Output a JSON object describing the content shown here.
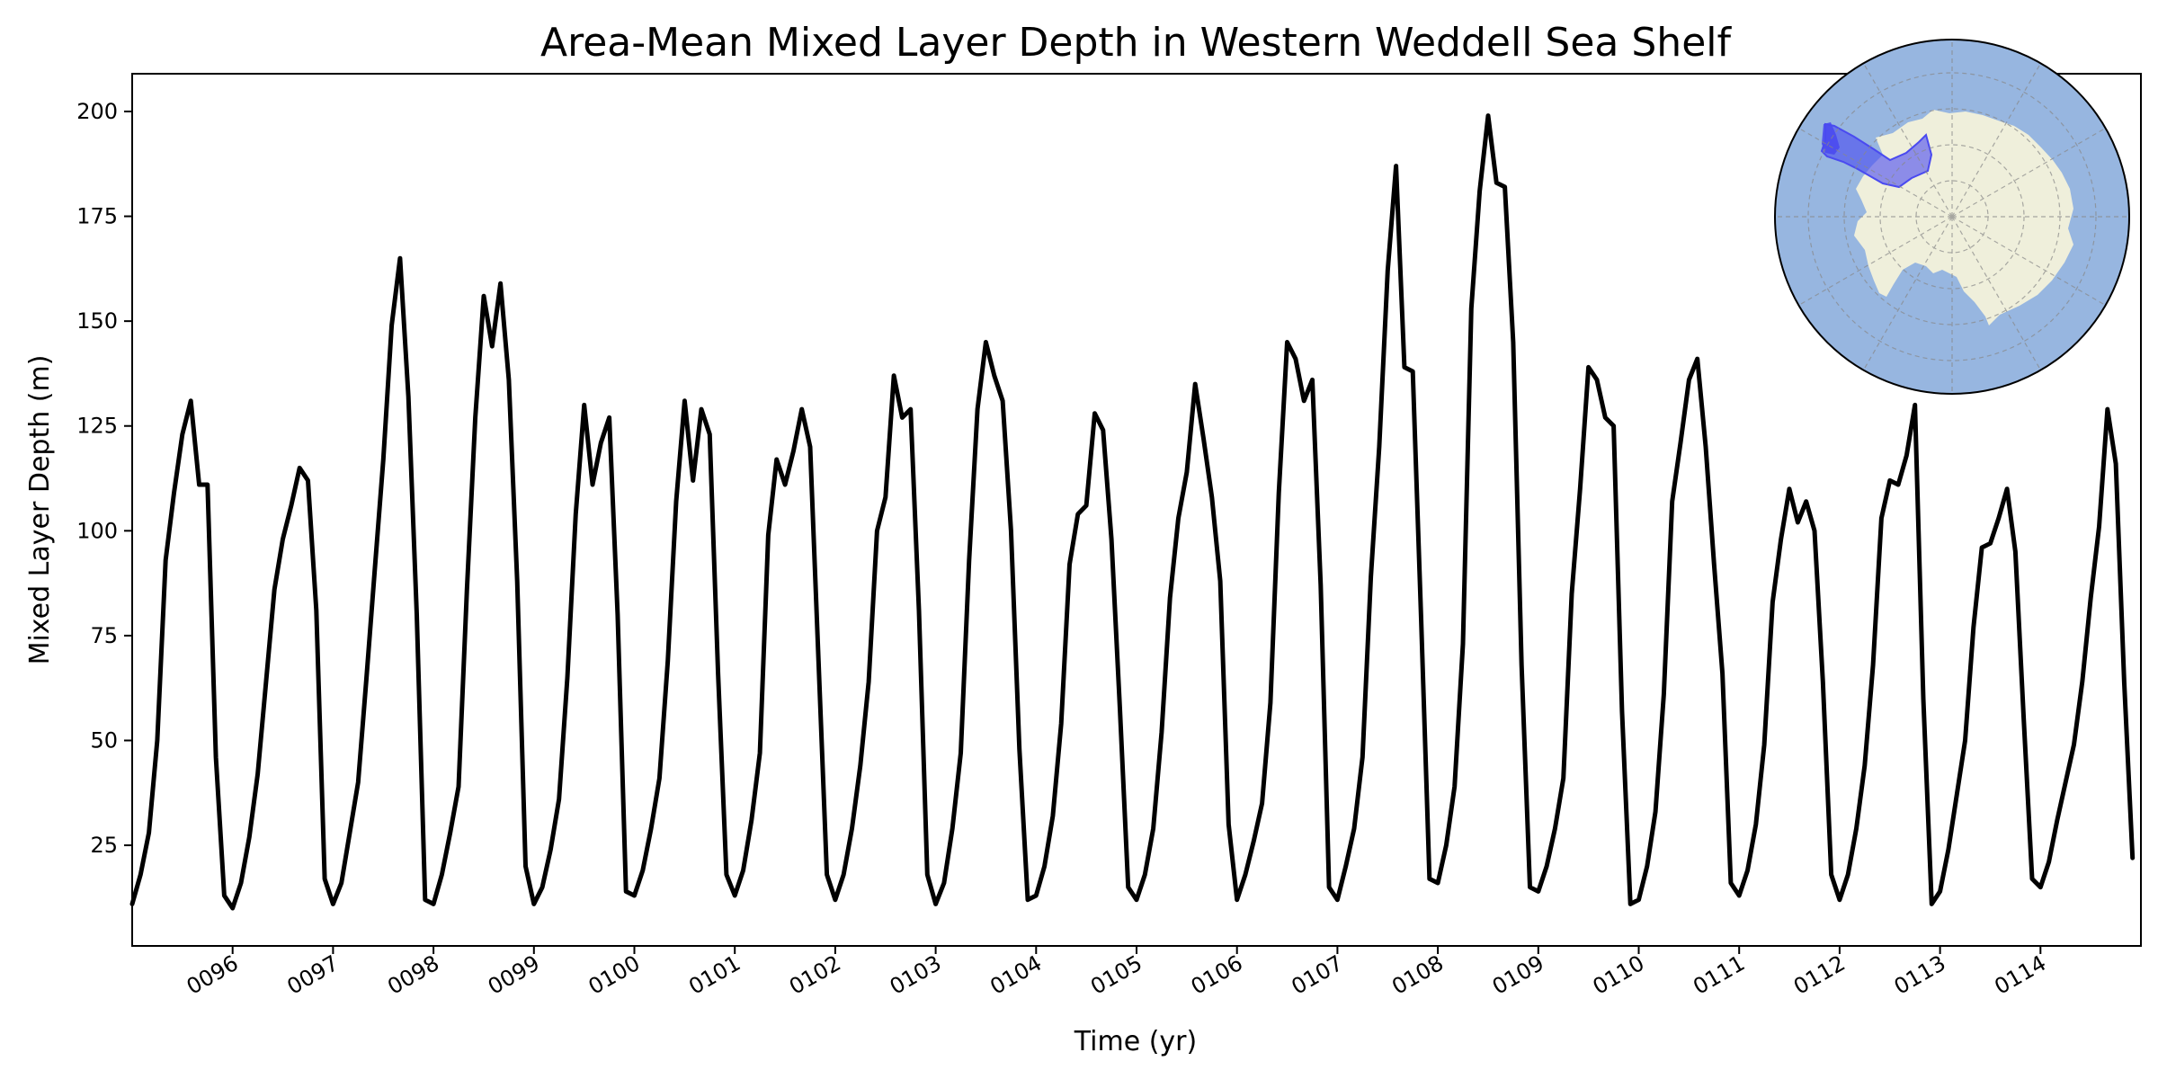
{
  "chart_data": {
    "type": "line",
    "title": "Area-Mean Mixed Layer Depth in Western Weddell Sea Shelf",
    "xlabel": "Time (yr)",
    "ylabel": "Mixed Layer Depth (m)",
    "xlim": [
      95.0,
      115.0
    ],
    "ylim": [
      1,
      209
    ],
    "x_ticks": [
      {
        "value": 96,
        "label": "0096"
      },
      {
        "value": 97,
        "label": "0097"
      },
      {
        "value": 98,
        "label": "0098"
      },
      {
        "value": 99,
        "label": "0099"
      },
      {
        "value": 100,
        "label": "0100"
      },
      {
        "value": 101,
        "label": "0101"
      },
      {
        "value": 102,
        "label": "0102"
      },
      {
        "value": 103,
        "label": "0103"
      },
      {
        "value": 104,
        "label": "0104"
      },
      {
        "value": 105,
        "label": "0105"
      },
      {
        "value": 106,
        "label": "0106"
      },
      {
        "value": 107,
        "label": "0107"
      },
      {
        "value": 108,
        "label": "0108"
      },
      {
        "value": 109,
        "label": "0109"
      },
      {
        "value": 110,
        "label": "0110"
      },
      {
        "value": 111,
        "label": "0111"
      },
      {
        "value": 112,
        "label": "0112"
      },
      {
        "value": 113,
        "label": "0113"
      },
      {
        "value": 114,
        "label": "0114"
      }
    ],
    "y_ticks": [
      {
        "value": 25,
        "label": "25"
      },
      {
        "value": 50,
        "label": "50"
      },
      {
        "value": 75,
        "label": "75"
      },
      {
        "value": 100,
        "label": "100"
      },
      {
        "value": 125,
        "label": "125"
      },
      {
        "value": 150,
        "label": "150"
      },
      {
        "value": 175,
        "label": "175"
      },
      {
        "value": 200,
        "label": "200"
      }
    ],
    "grid": false,
    "series": [
      {
        "color": "#000000",
        "monthly_values_from_year_95": [
          11,
          18,
          28,
          50,
          93,
          109,
          123,
          131,
          111,
          111,
          46,
          13,
          10,
          16,
          27,
          42,
          64,
          86,
          98,
          106,
          115,
          112,
          81,
          17,
          11,
          16,
          28,
          40,
          65,
          91,
          117,
          149,
          165,
          132,
          80,
          12,
          11,
          18,
          28,
          39,
          86,
          127,
          156,
          144,
          159,
          136,
          88,
          20,
          11,
          15,
          24,
          36,
          65,
          104,
          130,
          111,
          121,
          127,
          80,
          14,
          13,
          19,
          29,
          41,
          69,
          107,
          131,
          112,
          129,
          123,
          66,
          18,
          13,
          19,
          31,
          47,
          99,
          117,
          111,
          119,
          129,
          120,
          69,
          18,
          12,
          18,
          29,
          44,
          64,
          100,
          108,
          137,
          127,
          129,
          81,
          18,
          11,
          16,
          29,
          47,
          93,
          129,
          145,
          137,
          131,
          100,
          48,
          12,
          13,
          20,
          32,
          54,
          92,
          104,
          106,
          128,
          124,
          98,
          58,
          15,
          12,
          18,
          29,
          52,
          84,
          103,
          114,
          135,
          122,
          108,
          88,
          30,
          12,
          18,
          26,
          35,
          59,
          109,
          145,
          141,
          131,
          136,
          87,
          15,
          12,
          20,
          29,
          46,
          89,
          120,
          162,
          187,
          139,
          138,
          79,
          17,
          16,
          25,
          39,
          73,
          153,
          181,
          199,
          183,
          182,
          145,
          68,
          15,
          14,
          20,
          29,
          41,
          85,
          110,
          139,
          136,
          127,
          125,
          57,
          11,
          12,
          20,
          33,
          61,
          107,
          121,
          136,
          141,
          120,
          92,
          66,
          16,
          13,
          19,
          30,
          49,
          83,
          98,
          110,
          102,
          107,
          100,
          64,
          18,
          12,
          18,
          29,
          44,
          68,
          103,
          112,
          111,
          118,
          130,
          60,
          11,
          14,
          24,
          37,
          50,
          77,
          96,
          97,
          103,
          110,
          95,
          55,
          17,
          15,
          21,
          31,
          40,
          49,
          64,
          84,
          101,
          129,
          116,
          64,
          22
        ]
      }
    ]
  },
  "inset_map": {
    "ocean_color": "#97b6e0",
    "land_color": "#efefdb",
    "highlight_region_color": "#4a4af0"
  }
}
